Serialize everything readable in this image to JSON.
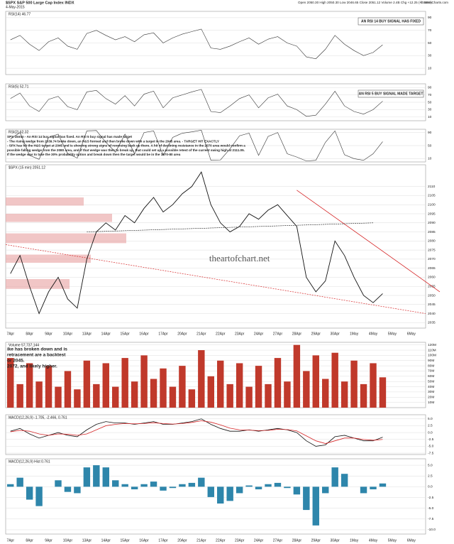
{
  "header": {
    "symbol": "$SPX S&P 500 Large Cap Index INDX",
    "date": "4-May-2015",
    "quote": "Open 2050.30  High 2050.30  Low 2046.65  Close 2051.12  Volume 2.4B  Chg +12.25 (+0.59%)",
    "credit": "© StockCharts.com"
  },
  "chart_data": [
    {
      "type": "line",
      "title": "RSI(14) 46.77",
      "annotation": "AN RSI 14 BUY SIGNAL HAS FIXED",
      "color": "#333333",
      "ylim": [
        0,
        100
      ],
      "yticks": [
        10,
        30,
        50,
        70,
        90
      ],
      "values": [
        55,
        62,
        48,
        38,
        52,
        58,
        45,
        40,
        65,
        70,
        62,
        55,
        60,
        52,
        63,
        66,
        50,
        58,
        64,
        68,
        72,
        42,
        40,
        45,
        52,
        58,
        48,
        56,
        60,
        50,
        45,
        28,
        25,
        40,
        62,
        48,
        38,
        30,
        35,
        47,
        null,
        null,
        null,
        null
      ]
    },
    {
      "type": "line",
      "title": "RSI(5) 52.71",
      "annotation": "AN RSI 5 BUY SIGNAL MADE TARGET",
      "color": "#333333",
      "ylim": [
        0,
        100
      ],
      "yticks": [
        10,
        30,
        50,
        70,
        90
      ],
      "values": [
        60,
        75,
        40,
        25,
        58,
        66,
        38,
        30,
        78,
        82,
        60,
        45,
        68,
        40,
        72,
        80,
        35,
        62,
        70,
        78,
        85,
        25,
        22,
        40,
        60,
        70,
        35,
        62,
        72,
        40,
        30,
        12,
        15,
        45,
        80,
        40,
        25,
        18,
        30,
        53,
        null,
        null,
        null,
        null
      ]
    },
    {
      "type": "line",
      "title": "RSI(2) 62.32",
      "color": "#333333",
      "ylim": [
        0,
        100
      ],
      "yticks": [
        10,
        50,
        90
      ],
      "notes": [
        "SPX 15min - An RSI 14 buy signal has fixed. An RSI 5 buy signal has made target",
        "- The rising wedge from 2039.74 broke down, an H&S formed and then broke down with a target in the 2045 area. - TARGET HIT EXACTLY",
        "- SPX has hit the H&S target at 2045 and is showing strong signs of reversing back up there. A hit of declining resistance in the 2070 area would confirm a",
        "possible falling wedge from the 2080 area, and if that wedge was then to break up, that could set up a possible retest of the current swing high at 2111.05.",
        "If the wedge was to take the 30% probability option and break down then the target would be in the 1970-80 area"
      ],
      "values": [
        70,
        90,
        20,
        8,
        75,
        85,
        25,
        12,
        95,
        96,
        60,
        30,
        85,
        25,
        90,
        95,
        20,
        75,
        88,
        92,
        97,
        5,
        6,
        40,
        80,
        88,
        20,
        78,
        90,
        25,
        15,
        3,
        5,
        60,
        95,
        22,
        10,
        5,
        25,
        62,
        null,
        null,
        null,
        null
      ]
    },
    {
      "type": "line",
      "title": "$SPX (15 min) 2051.12",
      "annotation": "theartofchart.net",
      "color": "#111111",
      "ylim": [
        2032,
        2122
      ],
      "yticks": [
        2035,
        2040,
        2045,
        2050,
        2055,
        2060,
        2065,
        2070,
        2075,
        2080,
        2085,
        2090,
        2095,
        2100,
        2105,
        2110
      ],
      "categories": [
        "7Apr",
        null,
        "8Apr",
        null,
        "9Apr",
        null,
        "10Apr",
        null,
        "13Apr",
        null,
        "14Apr",
        null,
        "15Apr",
        null,
        "16Apr",
        null,
        "17Apr",
        null,
        "20Apr",
        null,
        "21Apr",
        null,
        "22Apr",
        null,
        "23Apr",
        null,
        "24Apr",
        null,
        "27Apr",
        null,
        "28Apr",
        null,
        "29Apr",
        null,
        "30Apr",
        null,
        "1May",
        null,
        "4May",
        null,
        "5May",
        null,
        "6May",
        null
      ],
      "values": [
        2062,
        2072,
        2055,
        2040,
        2052,
        2060,
        2048,
        2043,
        2070,
        2085,
        2090,
        2086,
        2094,
        2090,
        2098,
        2104,
        2096,
        2100,
        2106,
        2110,
        2118,
        2100,
        2090,
        2085,
        2088,
        2095,
        2092,
        2097,
        2100,
        2094,
        2088,
        2060,
        2052,
        2058,
        2080,
        2072,
        2060,
        2050,
        2046,
        2051,
        null,
        null,
        null,
        null
      ]
    },
    {
      "type": "bar",
      "title": "Volume 57,737,144",
      "color": "#c0392b",
      "ylim": [
        0,
        125
      ],
      "notes": [
        "ike has broken down and is",
        "retracement are a backtest",
        "or 2045.",
        "2072, and likely higher."
      ],
      "yticks": [
        {
          "value": 10,
          "label": "10M"
        },
        {
          "value": 20,
          "label": "20M"
        },
        {
          "value": 30,
          "label": "30M"
        },
        {
          "value": 40,
          "label": "40M"
        },
        {
          "value": 50,
          "label": "50M"
        },
        {
          "value": 60,
          "label": "60M"
        },
        {
          "value": 70,
          "label": "70M"
        },
        {
          "value": 80,
          "label": "80M"
        },
        {
          "value": 90,
          "label": "90M"
        },
        {
          "value": 100,
          "label": "100M"
        },
        {
          "value": 110,
          "label": "110M"
        },
        {
          "value": 120,
          "label": "120M"
        }
      ],
      "values": [
        95,
        45,
        85,
        50,
        80,
        40,
        70,
        35,
        90,
        45,
        85,
        40,
        95,
        50,
        100,
        55,
        75,
        40,
        80,
        35,
        110,
        60,
        90,
        45,
        85,
        40,
        80,
        45,
        95,
        50,
        120,
        70,
        100,
        55,
        105,
        50,
        90,
        45,
        85,
        58,
        null,
        null,
        null,
        null
      ]
    },
    {
      "type": "line",
      "title": "MACD(12,26,9) -1.705, -2.466, 0.761",
      "ylim": [
        -8,
        6.5
      ],
      "yticks": [
        {
          "value": 5,
          "label": "5.0"
        },
        {
          "value": 2.5,
          "label": "2.5"
        },
        {
          "value": 0,
          "label": "0.0"
        },
        {
          "value": -2.5,
          "label": "-2.5"
        },
        {
          "value": -5,
          "label": "-5.0"
        },
        {
          "value": -7.5,
          "label": "-7.5"
        }
      ],
      "series": [
        {
          "color": "#111111",
          "values": [
            0.5,
            1.5,
            -0.5,
            -2,
            -1,
            0,
            -1,
            -1.5,
            1,
            3,
            4,
            3.5,
            3.5,
            3,
            3.5,
            4,
            3,
            3,
            3.5,
            4,
            5,
            3,
            1.5,
            0.5,
            0.5,
            1,
            0.5,
            1,
            1.5,
            1,
            0,
            -3,
            -5,
            -4.5,
            -1.5,
            -1,
            -2,
            -3,
            -3,
            -1.7,
            null,
            null,
            null,
            null
          ]
        },
        {
          "color": "#d62728",
          "values": [
            0.3,
            0.8,
            0.5,
            -0.5,
            -1,
            -0.5,
            -0.6,
            -1,
            -0.5,
            1,
            2.5,
            3,
            3.3,
            3.2,
            3.3,
            3.6,
            3.3,
            3.1,
            3.3,
            3.7,
            4.3,
            3.8,
            2.8,
            1.6,
            1,
            0.9,
            0.7,
            0.8,
            1.2,
            1.1,
            0.6,
            -1.2,
            -3,
            -4,
            -3,
            -2,
            -2,
            -2.5,
            -2.8,
            -2.5,
            null,
            null,
            null,
            null
          ]
        }
      ]
    },
    {
      "type": "bar",
      "title": "MACD(12,26,9) Hist 0.761",
      "color": "#2e86ab",
      "ylim": [
        -11,
        6.5
      ],
      "yticks": [
        {
          "value": 5,
          "label": "5.0"
        },
        {
          "value": 2.5,
          "label": "2.5"
        },
        {
          "value": 0,
          "label": "0.0"
        },
        {
          "value": -2.5,
          "label": "-2.5"
        },
        {
          "value": -5,
          "label": "-5.0"
        },
        {
          "value": -7.5,
          "label": "-7.5"
        },
        {
          "value": -10,
          "label": "-10.0"
        }
      ],
      "values": [
        0.6,
        2.1,
        -3,
        -4.5,
        0,
        1.5,
        -1.2,
        -1.5,
        4.5,
        5,
        4.5,
        1.5,
        0.6,
        -0.6,
        0.6,
        1.2,
        -0.9,
        -0.3,
        0.6,
        0.9,
        2.1,
        -2.4,
        -3.9,
        -3.3,
        -1.5,
        0.3,
        -0.6,
        0.6,
        0.9,
        -0.3,
        -1.8,
        -5.4,
        -9,
        -1.5,
        4.5,
        3,
        0,
        -1.5,
        -0.6,
        0.76,
        null,
        null,
        null,
        null
      ]
    }
  ]
}
